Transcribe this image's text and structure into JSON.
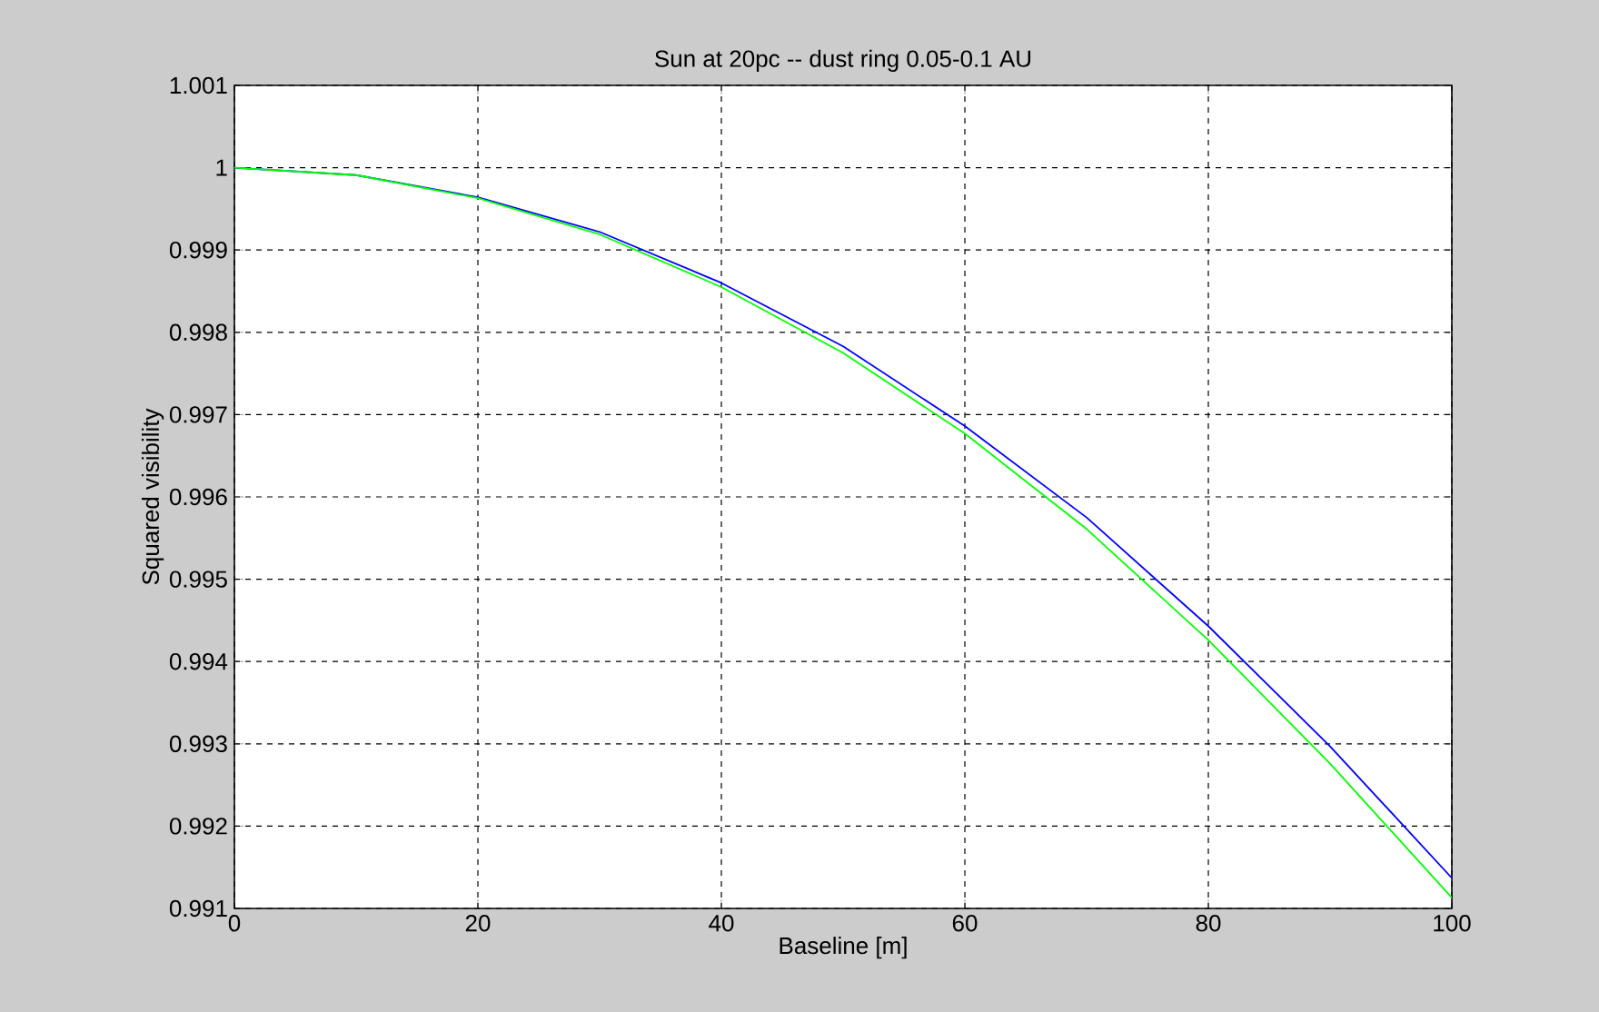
{
  "chart_data": {
    "type": "line",
    "title": "Sun at 20pc -- dust ring 0.05-0.1 AU",
    "xlabel": "Baseline [m]",
    "ylabel": "Squared visibility",
    "x": [
      0,
      10,
      20,
      30,
      40,
      50,
      60,
      70,
      80,
      90,
      100
    ],
    "series": [
      {
        "color": "#0000ff",
        "values": [
          1.0,
          0.99991,
          0.99964,
          0.99922,
          0.9986,
          0.99783,
          0.99686,
          0.99575,
          0.99443,
          0.99297,
          0.99137
        ]
      },
      {
        "color": "#00ff00",
        "values": [
          1.0,
          0.99991,
          0.99963,
          0.99919,
          0.99855,
          0.99775,
          0.99677,
          0.99561,
          0.99426,
          0.99276,
          0.99113
        ]
      }
    ],
    "xlim": [
      0,
      100
    ],
    "ylim": [
      0.991,
      1.001
    ],
    "xticks": [
      0,
      20,
      40,
      60,
      80,
      100
    ],
    "yticks": [
      0.991,
      0.992,
      0.993,
      0.994,
      0.995,
      0.996,
      0.997,
      0.998,
      0.999,
      1,
      1.001
    ],
    "grid": true,
    "marker": "none",
    "line_style": "solid"
  }
}
